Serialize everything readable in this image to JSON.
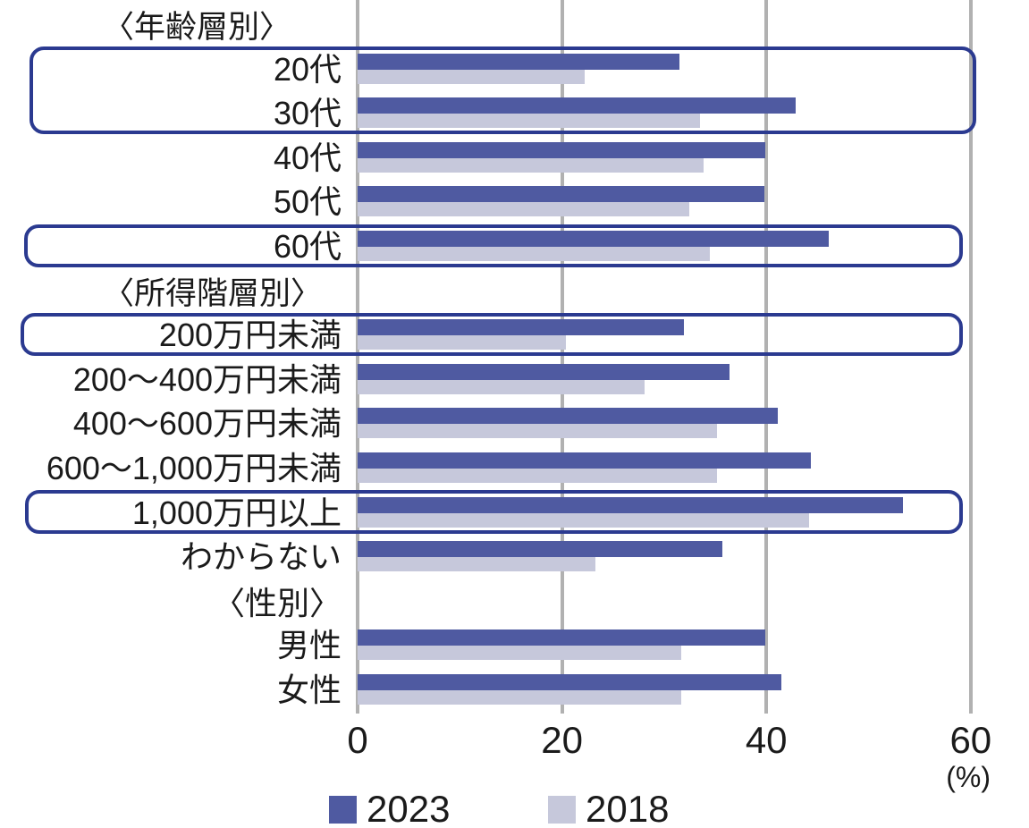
{
  "chart_data": {
    "type": "bar",
    "orientation": "horizontal",
    "grid": true,
    "legend_position": "bottom",
    "axis": {
      "ticks": [
        0,
        20,
        40,
        60
      ],
      "max": 60,
      "unit_label": "(%)"
    },
    "series": [
      {
        "name": "2023",
        "color": "#4f5aa1"
      },
      {
        "name": "2018",
        "color": "#c6c8db"
      }
    ],
    "rows": [
      {
        "type": "header",
        "label": "〈年齢層別〉",
        "align": "left"
      },
      {
        "type": "bars",
        "label": "20代",
        "values": [
          31.5,
          22.2
        ]
      },
      {
        "type": "bars",
        "label": "30代",
        "values": [
          42.9,
          33.5
        ]
      },
      {
        "type": "bars",
        "label": "40代",
        "values": [
          39.9,
          33.9
        ]
      },
      {
        "type": "bars",
        "label": "50代",
        "values": [
          39.8,
          32.5
        ]
      },
      {
        "type": "bars",
        "label": "60代",
        "values": [
          46.1,
          34.5
        ]
      },
      {
        "type": "header",
        "label": "〈所得階層別〉",
        "align": "left"
      },
      {
        "type": "bars",
        "label": "200万円未満",
        "values": [
          31.9,
          20.4
        ]
      },
      {
        "type": "bars",
        "label": "200〜400万円未満",
        "values": [
          36.4,
          28.1
        ]
      },
      {
        "type": "bars",
        "label": "400〜600万円未満",
        "values": [
          41.1,
          35.2
        ]
      },
      {
        "type": "bars",
        "label": "600〜1,000万円未満",
        "values": [
          44.4,
          35.2
        ]
      },
      {
        "type": "bars",
        "label": "1,000万円以上",
        "values": [
          53.4,
          44.2
        ]
      },
      {
        "type": "bars",
        "label": "わからない",
        "values": [
          35.7,
          23.3
        ]
      },
      {
        "type": "header",
        "label": "〈性別〉",
        "align": "right"
      },
      {
        "type": "bars",
        "label": "男性",
        "values": [
          39.9,
          31.7
        ]
      },
      {
        "type": "bars",
        "label": "女性",
        "values": [
          41.5,
          31.7
        ]
      }
    ],
    "highlight_boxes": [
      {
        "from": 1,
        "to": 2
      },
      {
        "from": 5,
        "to": 5
      },
      {
        "from": 7,
        "to": 7
      },
      {
        "from": 11,
        "to": 11
      }
    ]
  },
  "colors": {
    "bar_2023": "#4f5aa1",
    "bar_2018": "#c6c8db",
    "highlight_border": "#2b3a90",
    "gridline": "#b1b1b1",
    "text": "#1a1a1a",
    "background": "#ffffff"
  }
}
